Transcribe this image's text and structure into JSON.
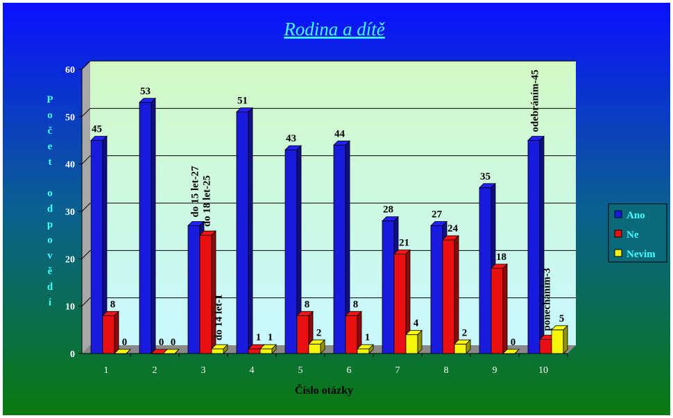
{
  "chart_data": {
    "type": "bar",
    "title": "Rodina a dítě",
    "xlabel": "Číslo otázky",
    "ylabel": "Počet odpovědí",
    "ylim": [
      0,
      60
    ],
    "yticks": [
      "0",
      "10",
      "20",
      "30",
      "40",
      "50",
      "60"
    ],
    "categories": [
      "1",
      "2",
      "3",
      "4",
      "5",
      "6",
      "7",
      "8",
      "9",
      "10"
    ],
    "series": [
      {
        "name": "Ano",
        "color": "#1a1adc",
        "values": [
          45,
          53,
          27,
          51,
          43,
          44,
          28,
          27,
          35,
          45
        ]
      },
      {
        "name": "Ne",
        "color": "#e81010",
        "values": [
          8,
          0,
          25,
          1,
          8,
          8,
          21,
          24,
          18,
          3
        ]
      },
      {
        "name": "Nevim",
        "color": "#f5f50a",
        "values": [
          0,
          0,
          1,
          1,
          2,
          1,
          4,
          2,
          0,
          5
        ]
      }
    ],
    "data_labels": [
      [
        "45",
        "8",
        "0"
      ],
      [
        "53",
        "0",
        "0"
      ],
      [
        "do 15 let-27",
        "do 18 let-25",
        "do 14 let-1"
      ],
      [
        "51",
        "1",
        "1"
      ],
      [
        "43",
        "8",
        "2"
      ],
      [
        "44",
        "8",
        "1"
      ],
      [
        "28",
        "21",
        "4"
      ],
      [
        "27",
        "24",
        "2"
      ],
      [
        "35",
        "18",
        "0"
      ],
      [
        "odebráním-45",
        "ponecháním-3",
        "5"
      ]
    ],
    "legend_position": "right",
    "grid": true
  },
  "colors": {
    "background_top": "#0a1aff",
    "background_mid": "#0a6a8a",
    "background_bottom": "#0a7a1a",
    "plot_wall_top": "#cff8c8",
    "plot_wall_bottom": "#c8f8ff",
    "title_color": "#40ffff",
    "axis_label_color": "#40ffff"
  }
}
